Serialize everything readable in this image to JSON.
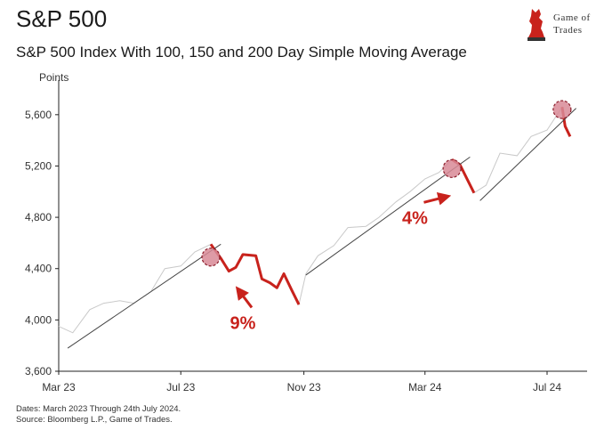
{
  "header": {
    "title": "S&P 500",
    "subtitle": "S&P 500 Index With 100, 150 and 200 Day Simple Moving Average"
  },
  "logo": {
    "line1": "Game of",
    "line2": "Trades"
  },
  "footer": {
    "dates": "Dates: March 2023 Through 24th July 2024.",
    "source": "Source: Bloomberg L.P., Game of Trades."
  },
  "chart_data": {
    "type": "line",
    "ylabel": "Points",
    "ylim": [
      3600,
      5800
    ],
    "yticks": [
      3600,
      4000,
      4400,
      4800,
      5200,
      5600
    ],
    "ytick_labels": [
      "3,600",
      "4,000",
      "4,400",
      "4,800",
      "5,200",
      "5,600"
    ],
    "xlim": [
      "2023-03-01",
      "2024-08-10"
    ],
    "xticks": [
      "2023-03-01",
      "2023-07-01",
      "2023-11-01",
      "2024-03-01",
      "2024-07-01"
    ],
    "xtick_labels": [
      "Mar 23",
      "Jul 23",
      "Nov 23",
      "Mar 24",
      "Jul 24"
    ],
    "colors": {
      "price": "#c9c9c9",
      "highlight": "#c8221c",
      "trend": "#444444",
      "marker": "#d88a96",
      "arrow": "#c8221c"
    },
    "series": [
      {
        "name": "S&P 500 (daily)",
        "x": [
          "2023-03-01",
          "2023-03-15",
          "2023-04-01",
          "2023-04-15",
          "2023-05-01",
          "2023-05-15",
          "2023-06-01",
          "2023-06-15",
          "2023-07-01",
          "2023-07-15",
          "2023-07-31",
          "2023-08-10",
          "2023-08-18",
          "2023-08-25",
          "2023-09-01",
          "2023-09-14",
          "2023-09-20",
          "2023-09-28",
          "2023-10-05",
          "2023-10-12",
          "2023-10-20",
          "2023-10-27",
          "2023-11-03",
          "2023-11-15",
          "2023-12-01",
          "2023-12-15",
          "2024-01-02",
          "2024-01-15",
          "2024-02-01",
          "2024-02-15",
          "2024-03-01",
          "2024-03-15",
          "2024-03-28",
          "2024-04-05",
          "2024-04-12",
          "2024-04-19",
          "2024-05-01",
          "2024-05-15",
          "2024-06-01",
          "2024-06-15",
          "2024-07-01",
          "2024-07-16",
          "2024-07-19",
          "2024-07-24"
        ],
        "values": [
          3950,
          3900,
          4080,
          4130,
          4150,
          4130,
          4220,
          4400,
          4420,
          4530,
          4590,
          4480,
          4380,
          4410,
          4510,
          4500,
          4320,
          4290,
          4250,
          4360,
          4230,
          4120,
          4360,
          4500,
          4580,
          4720,
          4730,
          4800,
          4920,
          5000,
          5100,
          5150,
          5250,
          5210,
          5100,
          4990,
          5050,
          5300,
          5280,
          5430,
          5480,
          5660,
          5510,
          5430
        ]
      }
    ],
    "highlight_segments": [
      {
        "from": "2023-07-31",
        "to": "2023-10-27"
      },
      {
        "from": "2024-03-28",
        "to": "2024-04-19"
      },
      {
        "from": "2024-07-16",
        "to": "2024-07-24"
      }
    ],
    "trend_lines": [
      {
        "x": [
          "2023-03-10",
          "2023-08-10"
        ],
        "y": [
          3780,
          4590
        ]
      },
      {
        "x": [
          "2023-11-03",
          "2024-04-15"
        ],
        "y": [
          4350,
          5270
        ]
      },
      {
        "x": [
          "2024-04-25",
          "2024-07-30"
        ],
        "y": [
          4930,
          5650
        ]
      }
    ],
    "peak_markers": [
      {
        "x": "2023-07-31",
        "y": 4490
      },
      {
        "x": "2024-03-28",
        "y": 5180
      },
      {
        "x": "2024-07-16",
        "y": 5640
      }
    ],
    "annotations": [
      {
        "text": "9%",
        "x": "2023-09-01",
        "y": 3930,
        "arrow_to": {
          "x": "2023-08-28",
          "y": 4230
        }
      },
      {
        "text": "4%",
        "x": "2024-02-20",
        "y": 4750,
        "arrow_to": {
          "x": "2024-03-22",
          "y": 4960
        }
      }
    ]
  }
}
